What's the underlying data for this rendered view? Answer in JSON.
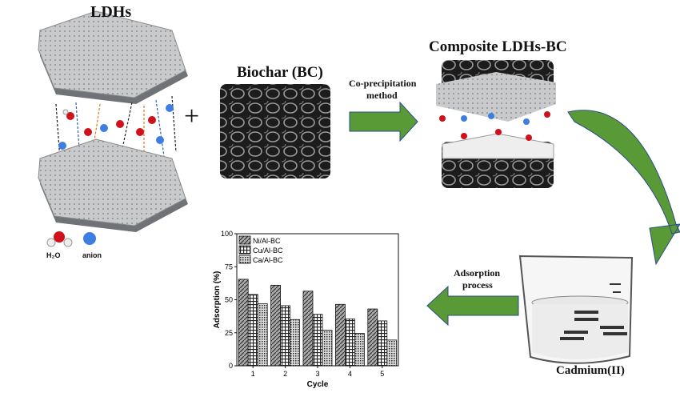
{
  "labels": {
    "ldhs": "LDHs",
    "plus": "+",
    "biochar": "Biochar (BC)",
    "coprecip_line1": "Co-precipitation",
    "coprecip_line2": "method",
    "composite": "Composite LDHs-BC",
    "h2o": "H₂O",
    "anion": "anion",
    "adsorption_line1": "Adsorption",
    "adsorption_line2": "process",
    "cadmium": "Cadmium(II)"
  },
  "colors": {
    "arrow_green": "#5a9a36",
    "water_red": "#d0101a",
    "anion_blue": "#3d7ee0",
    "sem_dark": "#2a2a2a"
  },
  "chart_data": {
    "type": "bar",
    "xlabel": "Cycle",
    "ylabel": "Adsorption (%)",
    "categories": [
      "1",
      "2",
      "3",
      "4",
      "5"
    ],
    "ylim": [
      0,
      100
    ],
    "yticks": [
      "0",
      "25",
      "50",
      "75",
      "100"
    ],
    "legend_placement": "top-left",
    "series": [
      {
        "name": "Ni/Al-BC",
        "values": [
          65.5,
          61,
          56.5,
          46.5,
          43
        ]
      },
      {
        "name": "Cu/Al-BC",
        "values": [
          54,
          45.5,
          39,
          35.5,
          34
        ]
      },
      {
        "name": "Ca/Al-BC",
        "values": [
          47,
          35,
          27,
          24.5,
          19.5
        ]
      }
    ]
  }
}
